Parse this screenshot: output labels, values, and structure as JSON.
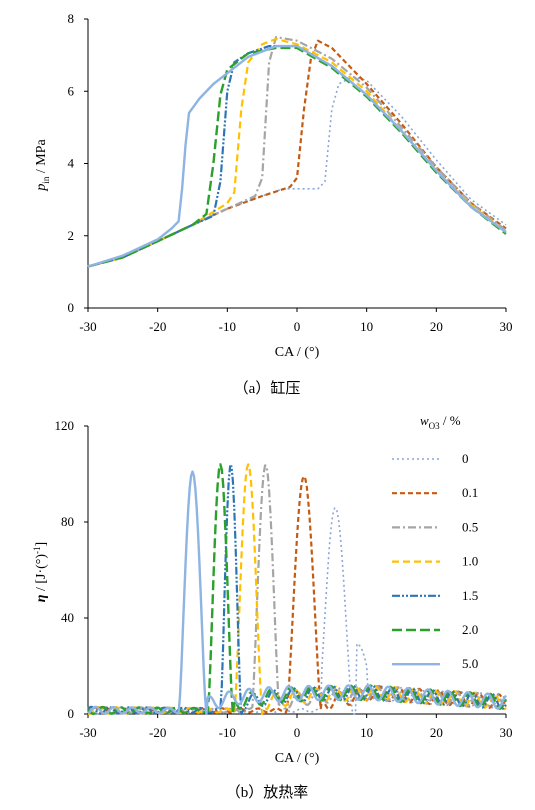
{
  "chart_data": [
    {
      "type": "line",
      "caption": "（a）缸压",
      "ylabel_main": "p",
      "ylabel_sub": "in",
      "ylabel_unit": " / MPa",
      "xlabel": "CA / (°)",
      "xlim": [
        -30,
        30
      ],
      "ylim": [
        0,
        8
      ],
      "xticks": [
        -30,
        -20,
        -10,
        0,
        10,
        20,
        30
      ],
      "yticks": [
        0,
        2,
        4,
        6,
        8
      ],
      "series": [
        {
          "name": "0",
          "color": "#8aa6d6",
          "dash": "2,3",
          "width": 1.6,
          "points": [
            [
              -30,
              1.15
            ],
            [
              -25,
              1.4
            ],
            [
              -20,
              1.85
            ],
            [
              -15,
              2.3
            ],
            [
              -10,
              2.75
            ],
            [
              -5,
              3.1
            ],
            [
              -2,
              3.3
            ],
            [
              3,
              3.3
            ],
            [
              4,
              3.5
            ],
            [
              5,
              5.5
            ],
            [
              6,
              6.2
            ],
            [
              8,
              6.4
            ],
            [
              10,
              6.3
            ],
            [
              15,
              5.3
            ],
            [
              20,
              4.1
            ],
            [
              25,
              3.0
            ],
            [
              30,
              2.3
            ]
          ]
        },
        {
          "name": "0.1",
          "color": "#c55a11",
          "dash": "5,3",
          "width": 2.2,
          "points": [
            [
              -30,
              1.15
            ],
            [
              -25,
              1.4
            ],
            [
              -20,
              1.85
            ],
            [
              -15,
              2.3
            ],
            [
              -10,
              2.75
            ],
            [
              -5,
              3.1
            ],
            [
              -1,
              3.35
            ],
            [
              0,
              3.6
            ],
            [
              1,
              5.5
            ],
            [
              2,
              6.9
            ],
            [
              3,
              7.4
            ],
            [
              5,
              7.2
            ],
            [
              8,
              6.6
            ],
            [
              10,
              6.2
            ],
            [
              15,
              5.1
            ],
            [
              20,
              3.9
            ],
            [
              25,
              2.9
            ],
            [
              30,
              2.2
            ]
          ]
        },
        {
          "name": "0.5",
          "color": "#a5a5a5",
          "dash": "8,3,2,3",
          "width": 2.2,
          "points": [
            [
              -30,
              1.15
            ],
            [
              -25,
              1.4
            ],
            [
              -20,
              1.85
            ],
            [
              -15,
              2.3
            ],
            [
              -10,
              2.75
            ],
            [
              -6,
              3.1
            ],
            [
              -5,
              3.6
            ],
            [
              -4,
              6.8
            ],
            [
              -3,
              7.5
            ],
            [
              0,
              7.4
            ],
            [
              5,
              6.9
            ],
            [
              10,
              6.1
            ],
            [
              15,
              5.0
            ],
            [
              20,
              3.9
            ],
            [
              25,
              2.9
            ],
            [
              30,
              2.15
            ]
          ]
        },
        {
          "name": "1.0",
          "color": "#ffc000",
          "dash": "7,4",
          "width": 2.2,
          "points": [
            [
              -30,
              1.15
            ],
            [
              -25,
              1.4
            ],
            [
              -20,
              1.85
            ],
            [
              -15,
              2.3
            ],
            [
              -10,
              2.9
            ],
            [
              -9,
              3.2
            ],
            [
              -8,
              5.5
            ],
            [
              -7,
              6.8
            ],
            [
              -5,
              7.3
            ],
            [
              -3,
              7.45
            ],
            [
              0,
              7.3
            ],
            [
              5,
              6.8
            ],
            [
              10,
              6.0
            ],
            [
              15,
              4.9
            ],
            [
              20,
              3.8
            ],
            [
              25,
              2.85
            ],
            [
              30,
              2.1
            ]
          ]
        },
        {
          "name": "1.5",
          "color": "#2e75b6",
          "dash": "8,2,2,2,2,2",
          "width": 2.2,
          "points": [
            [
              -30,
              1.15
            ],
            [
              -25,
              1.4
            ],
            [
              -20,
              1.85
            ],
            [
              -15,
              2.3
            ],
            [
              -12,
              2.55
            ],
            [
              -11,
              3.5
            ],
            [
              -10,
              6.0
            ],
            [
              -9,
              6.8
            ],
            [
              -7,
              7.05
            ],
            [
              -4,
              7.25
            ],
            [
              0,
              7.25
            ],
            [
              5,
              6.7
            ],
            [
              10,
              5.9
            ],
            [
              15,
              4.9
            ],
            [
              20,
              3.8
            ],
            [
              25,
              2.8
            ],
            [
              30,
              2.1
            ]
          ]
        },
        {
          "name": "2.0",
          "color": "#2ca02c",
          "dash": "10,4",
          "width": 2.4,
          "points": [
            [
              -30,
              1.15
            ],
            [
              -25,
              1.4
            ],
            [
              -20,
              1.85
            ],
            [
              -15,
              2.3
            ],
            [
              -13,
              2.6
            ],
            [
              -12,
              4.0
            ],
            [
              -11,
              5.9
            ],
            [
              -10,
              6.6
            ],
            [
              -7,
              7.05
            ],
            [
              -3,
              7.2
            ],
            [
              0,
              7.2
            ],
            [
              5,
              6.65
            ],
            [
              10,
              5.85
            ],
            [
              15,
              4.85
            ],
            [
              20,
              3.75
            ],
            [
              25,
              2.8
            ],
            [
              30,
              2.05
            ]
          ]
        },
        {
          "name": "5.0",
          "color": "#8eb4e3",
          "dash": "",
          "width": 2.4,
          "points": [
            [
              -30,
              1.15
            ],
            [
              -25,
              1.45
            ],
            [
              -20,
              1.9
            ],
            [
              -18,
              2.2
            ],
            [
              -17,
              2.4
            ],
            [
              -16.5,
              3.3
            ],
            [
              -16,
              4.5
            ],
            [
              -15.5,
              5.4
            ],
            [
              -14,
              5.8
            ],
            [
              -12,
              6.2
            ],
            [
              -10,
              6.5
            ],
            [
              -7,
              6.95
            ],
            [
              -3,
              7.25
            ],
            [
              0,
              7.25
            ],
            [
              5,
              6.7
            ],
            [
              10,
              5.9
            ],
            [
              15,
              4.9
            ],
            [
              20,
              3.8
            ],
            [
              25,
              2.8
            ],
            [
              30,
              2.1
            ]
          ]
        }
      ]
    },
    {
      "type": "line",
      "caption": "（b）放热率",
      "ylabel_main": "η",
      "ylabel_unit": " / [J·(°)",
      "ylabel_sup": "-1",
      "ylabel_end": "]",
      "xlabel": "CA / (°)",
      "xlim": [
        -30,
        30
      ],
      "ylim": [
        0,
        120
      ],
      "xticks": [
        -30,
        -20,
        -10,
        0,
        10,
        20,
        30
      ],
      "yticks": [
        0,
        40,
        80,
        120
      ],
      "legend_title_main": "w",
      "legend_title_sub": "O3",
      "legend_title_unit": " / %",
      "legend_labels": [
        "0",
        "0.1",
        "0.5",
        "1.0",
        "1.5",
        "2.0",
        "5.0"
      ],
      "series": [
        {
          "name": "0",
          "peak_x": 5.5,
          "peak_y": 86,
          "onset": 3.5,
          "end": 8.5
        },
        {
          "name": "0.1",
          "peak_x": 1.0,
          "peak_y": 99,
          "onset": -1.5,
          "end": 3.5
        },
        {
          "name": "0.5",
          "peak_x": -4.5,
          "peak_y": 104,
          "onset": -6.5,
          "end": -2.5
        },
        {
          "name": "1.0",
          "peak_x": -7.0,
          "peak_y": 104,
          "onset": -9.0,
          "end": -5.0
        },
        {
          "name": "1.5",
          "peak_x": -9.5,
          "peak_y": 104,
          "onset": -11.0,
          "end": -8.0
        },
        {
          "name": "2.0",
          "peak_x": -11.0,
          "peak_y": 104,
          "onset": -12.8,
          "end": -9.2
        },
        {
          "name": "5.0",
          "peak_x": -15.0,
          "peak_y": 101,
          "onset": -17.0,
          "end": -13.0
        }
      ]
    }
  ]
}
